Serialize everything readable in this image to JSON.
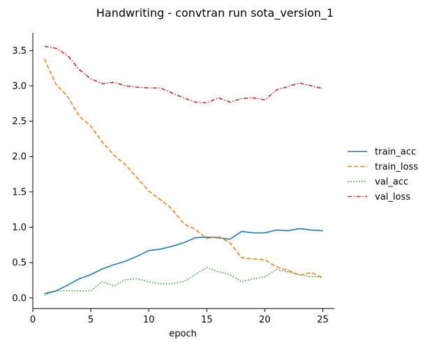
{
  "chart_data": {
    "type": "line",
    "title": "Handwriting - convtran run sota_version_1",
    "xlabel": "epoch",
    "ylabel": "",
    "xlim": [
      0,
      26
    ],
    "ylim": [
      -0.15,
      3.75
    ],
    "xticks": [
      0,
      5,
      10,
      15,
      20,
      25
    ],
    "yticks": [
      0.0,
      0.5,
      1.0,
      1.5,
      2.0,
      2.5,
      3.0,
      3.5
    ],
    "xtick_labels": [
      "0",
      "5",
      "10",
      "15",
      "20",
      "25"
    ],
    "ytick_labels": [
      "0.0",
      "0.5",
      "1.0",
      "1.5",
      "2.0",
      "2.5",
      "3.0",
      "3.5"
    ],
    "grid": false,
    "legend_position": "right",
    "x": [
      1,
      2,
      3,
      4,
      5,
      6,
      7,
      8,
      9,
      10,
      11,
      12,
      13,
      14,
      15,
      16,
      17,
      18,
      19,
      20,
      21,
      22,
      23,
      24,
      25
    ],
    "series": [
      {
        "name": "train_acc",
        "color": "#1f77b4",
        "dash": "solid",
        "values": [
          0.06,
          0.1,
          0.18,
          0.27,
          0.33,
          0.41,
          0.47,
          0.52,
          0.59,
          0.67,
          0.69,
          0.73,
          0.78,
          0.85,
          0.86,
          0.85,
          0.83,
          0.94,
          0.92,
          0.92,
          0.96,
          0.95,
          0.98,
          0.96,
          0.95
        ]
      },
      {
        "name": "train_loss",
        "color": "#ff7f0e",
        "dash": "dashed",
        "values": [
          3.38,
          3.02,
          2.85,
          2.57,
          2.43,
          2.2,
          2.02,
          1.88,
          1.7,
          1.51,
          1.39,
          1.26,
          1.05,
          0.97,
          0.84,
          0.87,
          0.78,
          0.57,
          0.55,
          0.54,
          0.44,
          0.39,
          0.32,
          0.36,
          0.28
        ]
      },
      {
        "name": "val_acc",
        "color": "#2ca02c",
        "dash": "dotted",
        "values": [
          0.04,
          0.1,
          0.1,
          0.1,
          0.1,
          0.23,
          0.17,
          0.26,
          0.27,
          0.23,
          0.2,
          0.2,
          0.23,
          0.33,
          0.43,
          0.37,
          0.33,
          0.23,
          0.27,
          0.3,
          0.4,
          0.37,
          0.33,
          0.3,
          0.3
        ]
      },
      {
        "name": "val_loss",
        "color": "#d62728",
        "dash": "dashdot",
        "values": [
          3.56,
          3.53,
          3.43,
          3.23,
          3.1,
          3.03,
          3.05,
          3.0,
          2.98,
          2.97,
          2.97,
          2.9,
          2.83,
          2.77,
          2.76,
          2.83,
          2.77,
          2.82,
          2.83,
          2.8,
          2.94,
          2.99,
          3.04,
          3.0,
          2.96
        ]
      }
    ]
  }
}
